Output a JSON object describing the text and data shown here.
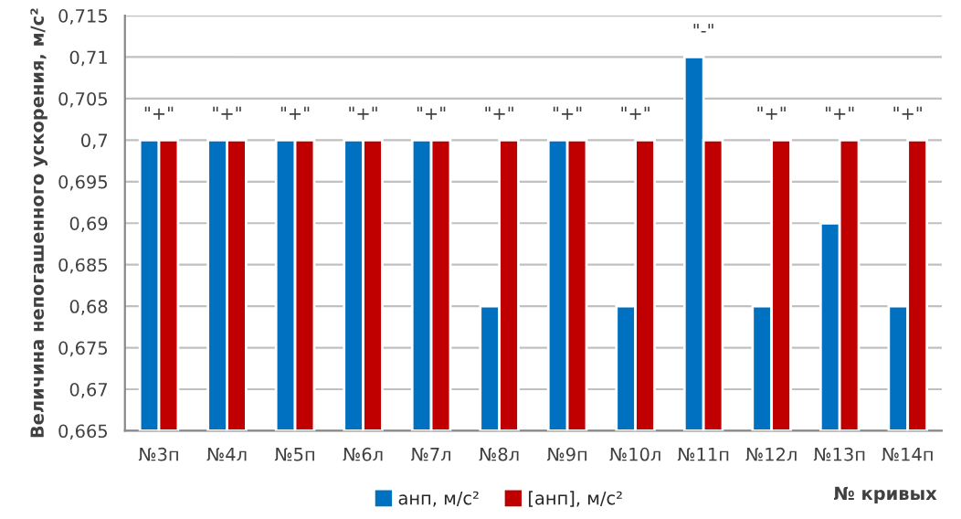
{
  "chart_data": {
    "type": "bar",
    "categories": [
      "№3п",
      "№4л",
      "№5п",
      "№6л",
      "№7л",
      "№8л",
      "№9п",
      "№10л",
      "№11п",
      "№12л",
      "№13п",
      "№14п"
    ],
    "series": [
      {
        "name": "анп, м/с²",
        "color": "#0070c0",
        "values": [
          0.7,
          0.7,
          0.7,
          0.7,
          0.7,
          0.68,
          0.7,
          0.68,
          0.71,
          0.68,
          0.69,
          0.68
        ]
      },
      {
        "name": "[анп], м/с²",
        "color": "#c00000",
        "values": [
          0.7,
          0.7,
          0.7,
          0.7,
          0.7,
          0.7,
          0.7,
          0.7,
          0.7,
          0.7,
          0.7,
          0.7
        ]
      }
    ],
    "ylabel": "Величина непогашенного ускорения, м/с²",
    "xlabel": "№ кривых",
    "ylim": [
      0.665,
      0.715
    ],
    "yticks": [
      {
        "value": 0.665,
        "label": "0,665"
      },
      {
        "value": 0.67,
        "label": "0,67"
      },
      {
        "value": 0.675,
        "label": "0,675"
      },
      {
        "value": 0.68,
        "label": "0,68"
      },
      {
        "value": 0.685,
        "label": "0,685"
      },
      {
        "value": 0.69,
        "label": "0,69"
      },
      {
        "value": 0.695,
        "label": "0,695"
      },
      {
        "value": 0.7,
        "label": "0,7"
      },
      {
        "value": 0.705,
        "label": "0,705"
      },
      {
        "value": 0.71,
        "label": "0,71"
      },
      {
        "value": 0.715,
        "label": "0,715"
      }
    ],
    "annotations": [
      "\"+\"",
      "\"+\"",
      "\"+\"",
      "\"+\"",
      "\"+\"",
      "\"+\"",
      "\"+\"",
      "\"+\"",
      "\"-\"",
      "\"+\"",
      "\"+\"",
      "\"+\""
    ],
    "grid": "y",
    "legend": "bottom"
  }
}
